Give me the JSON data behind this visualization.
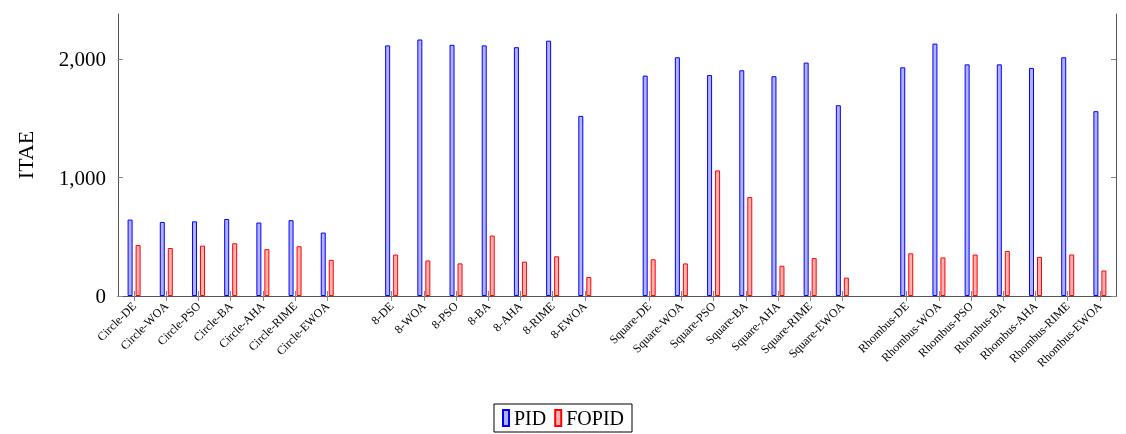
{
  "chart_data": {
    "type": "bar",
    "ylabel": "ITAE",
    "categories": [
      "Circle-DE",
      "Circle-WOA",
      "Circle-PSO",
      "Circle-BA",
      "Circle-AHA",
      "Circle-RIME",
      "Circle-EWOA",
      null,
      "8-DE",
      "8-WOA",
      "8-PSO",
      "8-BA",
      "8-AHA",
      "8-RIME",
      "8-EWOA",
      null,
      "Square-DE",
      "Square-WOA",
      "Square-PSO",
      "Square-BA",
      "Square-AHA",
      "Square-RIME",
      "Square-EWOA",
      null,
      "Rhombus-DE",
      "Rhombus-WOA",
      "Rhombus-PSO",
      "Rhombus-BA",
      "Rhombus-AHA",
      "Rhombus-RIME",
      "Rhombus-EWOA"
    ],
    "series": [
      {
        "name": "PID",
        "color": "#0000ff",
        "values": [
          645,
          625,
          630,
          650,
          620,
          640,
          535,
          null,
          2115,
          2165,
          2120,
          2115,
          2100,
          2155,
          1520,
          null,
          1860,
          2015,
          1865,
          1905,
          1855,
          1970,
          1610,
          null,
          1930,
          2130,
          1955,
          1955,
          1925,
          2015,
          1560
        ]
      },
      {
        "name": "FOPID",
        "color": "#ff0000",
        "values": [
          430,
          405,
          425,
          445,
          395,
          420,
          305,
          null,
          350,
          300,
          275,
          510,
          290,
          335,
          160,
          null,
          310,
          275,
          1060,
          835,
          255,
          320,
          155,
          null,
          360,
          325,
          350,
          380,
          330,
          350,
          215
        ]
      }
    ],
    "ylim": [
      0,
      2380
    ],
    "yticks": [
      0,
      {
        "value": 1000,
        "label": "1,000"
      },
      {
        "value": 2000,
        "label": "2,000"
      }
    ],
    "grid": false,
    "legend": "bottom"
  }
}
